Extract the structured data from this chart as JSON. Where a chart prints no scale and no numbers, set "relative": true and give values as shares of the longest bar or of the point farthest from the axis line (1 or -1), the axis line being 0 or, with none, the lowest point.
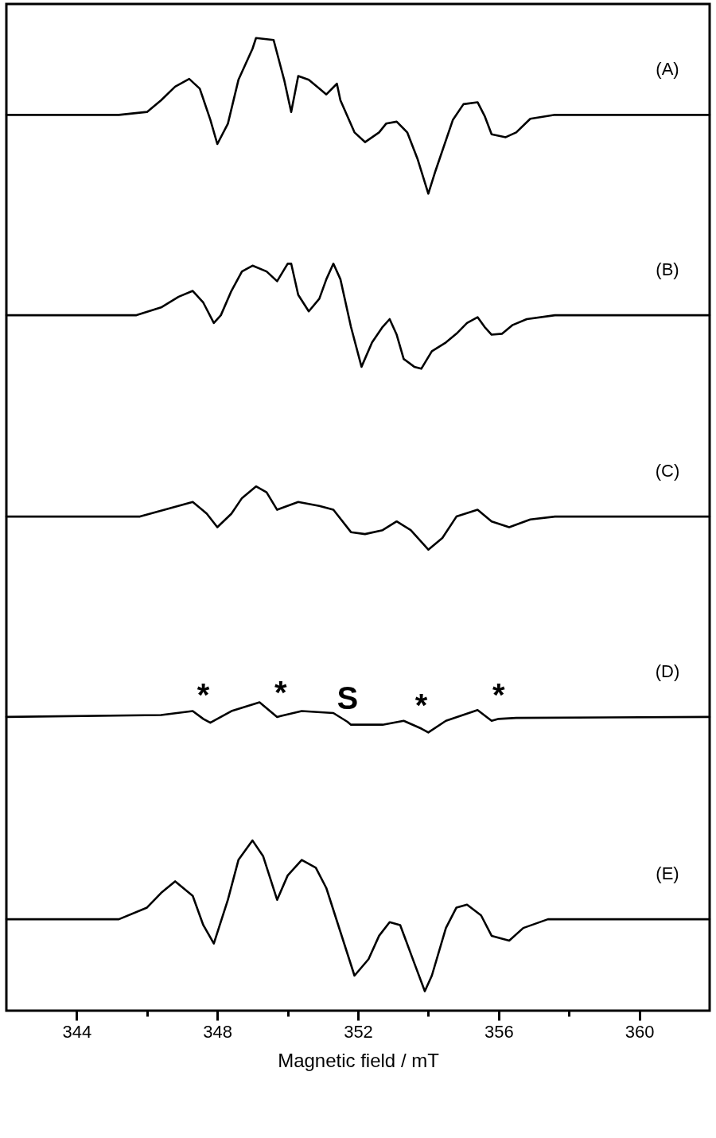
{
  "chart_data": {
    "type": "line",
    "relative": true,
    "xlabel": "Magnetic field / mT",
    "xlim": [
      342,
      362
    ],
    "xticks": [
      344,
      {
        "value": 346,
        "label": null
      },
      348,
      {
        "value": 350,
        "label": null
      },
      352,
      {
        "value": 354,
        "label": null
      },
      356,
      {
        "value": 358,
        "label": null
      },
      360
    ],
    "series": [
      {
        "name": "(A)",
        "color": "#000000",
        "x": [
          342.0,
          345.2,
          346.0,
          346.4,
          346.8,
          347.2,
          347.5,
          347.8,
          348.0,
          348.3,
          348.6,
          349.0,
          349.1,
          349.6,
          349.9,
          350.1,
          350.3,
          350.6,
          350.9,
          351.1,
          351.4,
          351.5,
          351.9,
          352.2,
          352.6,
          352.8,
          353.1,
          353.4,
          353.7,
          354.0,
          354.2,
          354.7,
          355.0,
          355.4,
          355.6,
          355.8,
          356.2,
          356.5,
          356.9,
          357.6,
          362.0
        ],
        "values": [
          0.921,
          0.921,
          0.924,
          0.936,
          0.95,
          0.958,
          0.948,
          0.916,
          0.891,
          0.912,
          0.957,
          0.989,
          1.0,
          0.998,
          0.957,
          0.924,
          0.961,
          0.957,
          0.948,
          0.942,
          0.953,
          0.936,
          0.903,
          0.893,
          0.903,
          0.912,
          0.914,
          0.903,
          0.875,
          0.84,
          0.863,
          0.916,
          0.932,
          0.934,
          0.92,
          0.901,
          0.898,
          0.903,
          0.917,
          0.921,
          0.921
        ]
      },
      {
        "name": "(B)",
        "color": "#000000",
        "x": [
          342.0,
          345.7,
          346.4,
          346.9,
          347.3,
          347.6,
          347.9,
          348.1,
          348.4,
          348.7,
          349.0,
          349.4,
          349.7,
          350.0,
          350.1,
          350.3,
          350.6,
          350.9,
          351.1,
          351.3,
          351.5,
          351.8,
          352.1,
          352.4,
          352.7,
          352.9,
          353.1,
          353.3,
          353.6,
          353.8,
          354.1,
          354.5,
          354.8,
          355.1,
          355.4,
          355.6,
          355.8,
          356.1,
          356.4,
          356.8,
          357.6,
          362.0
        ],
        "values": [
          0.715,
          0.715,
          0.723,
          0.734,
          0.74,
          0.728,
          0.707,
          0.715,
          0.74,
          0.76,
          0.766,
          0.76,
          0.75,
          0.768,
          0.768,
          0.736,
          0.719,
          0.732,
          0.752,
          0.768,
          0.752,
          0.703,
          0.662,
          0.687,
          0.703,
          0.711,
          0.695,
          0.67,
          0.662,
          0.66,
          0.678,
          0.687,
          0.696,
          0.707,
          0.713,
          0.703,
          0.695,
          0.696,
          0.705,
          0.711,
          0.715,
          0.715
        ]
      },
      {
        "name": "(C)",
        "color": "#000000",
        "x": [
          342.0,
          345.8,
          346.5,
          347.3,
          347.7,
          348.0,
          348.4,
          348.7,
          349.1,
          349.4,
          349.7,
          350.3,
          350.9,
          351.3,
          351.8,
          352.2,
          352.7,
          353.1,
          353.5,
          354.0,
          354.4,
          354.8,
          355.4,
          355.8,
          356.3,
          356.9,
          357.6,
          362.0
        ],
        "values": [
          0.508,
          0.508,
          0.515,
          0.523,
          0.511,
          0.497,
          0.511,
          0.527,
          0.539,
          0.533,
          0.515,
          0.523,
          0.519,
          0.515,
          0.492,
          0.49,
          0.494,
          0.503,
          0.494,
          0.474,
          0.486,
          0.508,
          0.515,
          0.503,
          0.497,
          0.505,
          0.508,
          0.508
        ]
      },
      {
        "name": "(D)",
        "color": "#000000",
        "x": [
          342.0,
          346.4,
          347.3,
          347.6,
          347.8,
          348.4,
          349.2,
          349.7,
          349.8,
          350.4,
          351.3,
          351.7,
          351.8,
          352.7,
          353.3,
          353.8,
          354.0,
          354.5,
          355.4,
          355.8,
          356.0,
          356.5,
          362.0
        ],
        "values": [
          0.302,
          0.304,
          0.308,
          0.3,
          0.296,
          0.308,
          0.317,
          0.302,
          0.303,
          0.308,
          0.306,
          0.297,
          0.294,
          0.294,
          0.298,
          0.29,
          0.286,
          0.298,
          0.309,
          0.298,
          0.3,
          0.301,
          0.302
        ]
      },
      {
        "name": "(E)",
        "color": "#000000",
        "x": [
          342.0,
          345.2,
          346.0,
          346.4,
          346.8,
          347.3,
          347.6,
          347.9,
          348.3,
          348.6,
          349.0,
          349.3,
          349.7,
          350.0,
          350.4,
          350.8,
          351.1,
          351.5,
          351.9,
          352.3,
          352.6,
          352.9,
          353.2,
          353.6,
          353.9,
          354.1,
          354.5,
          354.8,
          355.1,
          355.5,
          355.8,
          356.3,
          356.7,
          357.4,
          362.0
        ],
        "values": [
          0.094,
          0.094,
          0.106,
          0.121,
          0.133,
          0.118,
          0.088,
          0.069,
          0.114,
          0.155,
          0.175,
          0.159,
          0.114,
          0.139,
          0.155,
          0.147,
          0.126,
          0.081,
          0.036,
          0.053,
          0.077,
          0.091,
          0.088,
          0.049,
          0.02,
          0.036,
          0.085,
          0.106,
          0.109,
          0.098,
          0.077,
          0.072,
          0.085,
          0.094,
          0.094
        ]
      }
    ],
    "annotations": [
      {
        "text": "*",
        "x": 347.6,
        "y": 0.3
      },
      {
        "text": "*",
        "x": 349.8,
        "y": 0.303
      },
      {
        "text": "S",
        "x": 351.7,
        "y": 0.297
      },
      {
        "text": "*",
        "x": 353.8,
        "y": 0.29
      },
      {
        "text": "*",
        "x": 356.0,
        "y": 0.3
      }
    ]
  }
}
